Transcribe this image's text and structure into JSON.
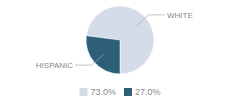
{
  "chart_data": {
    "type": "pie",
    "categories": [
      "WHITE",
      "HISPANIC"
    ],
    "values": [
      73.0,
      27.0
    ],
    "value_labels": [
      "73.0%",
      "27.0%"
    ],
    "colors": [
      "#d4dce8",
      "#2e5f7a"
    ],
    "legend": "bottom"
  }
}
